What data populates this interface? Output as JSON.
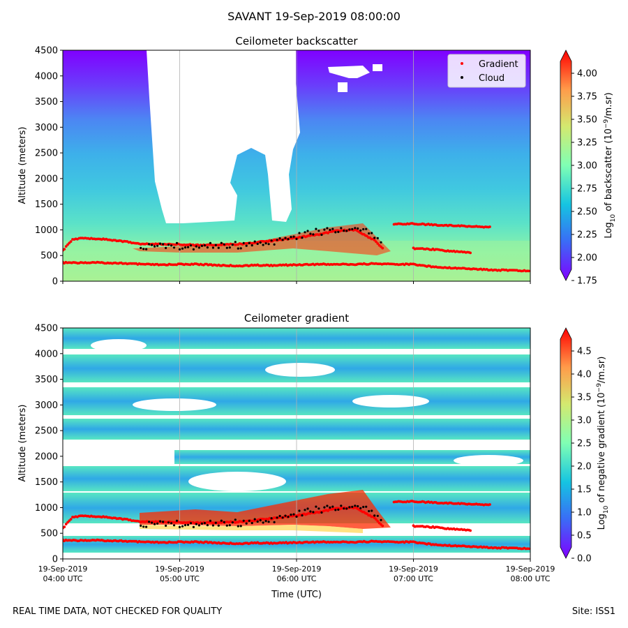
{
  "figure": {
    "suptitle": "SAVANT 19-Sep-2019 08:00:00",
    "footer_left": "REAL TIME DATA, NOT CHECKED FOR QUALITY",
    "footer_right": "Site: ISS1"
  },
  "chart_data": [
    {
      "type": "heatmap",
      "title": "Ceilometer backscatter",
      "xlabel": "",
      "ylabel": "Altitude (meters)",
      "xlim": [
        "2019-09-19T04:00",
        "2019-09-19T08:00"
      ],
      "ylim": [
        0,
        4500
      ],
      "yticks": [
        0,
        500,
        1000,
        1500,
        2000,
        2500,
        3000,
        3500,
        4000,
        4500
      ],
      "xticks": [
        "04:00",
        "05:00",
        "06:00",
        "07:00",
        "08:00"
      ],
      "xtick_labels": [],
      "grid": "vertical",
      "colorbar": {
        "label_parts": [
          "Log",
          "10",
          " of backscatter (10",
          "−9",
          "/m.sr)"
        ],
        "colormap": "rainbow",
        "min": 1.75,
        "max": 4.25,
        "ticks": [
          1.75,
          2.0,
          2.25,
          2.5,
          2.75,
          3.0,
          3.25,
          3.5,
          3.75,
          4.0
        ],
        "tick_labels": [
          "1.75",
          "2.00",
          "2.25",
          "2.50",
          "2.75",
          "3.00",
          "3.25",
          "3.50",
          "3.75",
          "4.00"
        ],
        "extend": "both"
      },
      "legend": {
        "placement": "top-right",
        "entries": [
          {
            "name": "Gradient",
            "color": "#ff0000"
          },
          {
            "name": "Cloud",
            "color": "#000000"
          }
        ]
      },
      "series": [
        {
          "name": "Gradient",
          "kind": "scatter",
          "color": "#ff0000",
          "x": [
            "04:00",
            "04:10",
            "04:20",
            "04:30",
            "04:40",
            "04:50",
            "05:00",
            "05:10",
            "05:20",
            "05:30",
            "05:40",
            "05:50",
            "06:00",
            "06:10",
            "06:20",
            "06:30",
            "06:40",
            "06:50",
            "07:00",
            "07:10",
            "07:20",
            "07:30",
            "07:40",
            "07:50",
            "08:00"
          ],
          "y": [
            360,
            360,
            360,
            350,
            330,
            320,
            330,
            330,
            310,
            300,
            310,
            310,
            320,
            330,
            330,
            330,
            340,
            330,
            330,
            280,
            260,
            240,
            220,
            210,
            200
          ]
        },
        {
          "name": "Gradient",
          "kind": "scatter",
          "color": "#ff0000",
          "x": [
            "04:00",
            "04:05",
            "04:10",
            "04:20",
            "04:30",
            "04:40",
            "04:50",
            "05:00",
            "05:10",
            "05:20",
            "05:30",
            "05:40",
            "05:50",
            "06:00",
            "06:10",
            "06:20",
            "06:30",
            "06:40",
            "06:45"
          ],
          "y": [
            600,
            810,
            840,
            820,
            780,
            730,
            720,
            720,
            700,
            710,
            720,
            760,
            800,
            850,
            900,
            980,
            1000,
            800,
            600
          ]
        },
        {
          "name": "Gradient",
          "kind": "scatter",
          "color": "#ff0000",
          "x": [
            "06:50",
            "07:00",
            "07:10",
            "07:20",
            "07:30",
            "07:40"
          ],
          "y": [
            1110,
            1120,
            1100,
            1080,
            1070,
            1050
          ]
        },
        {
          "name": "Gradient",
          "kind": "scatter",
          "color": "#ff0000",
          "x": [
            "07:00",
            "07:10",
            "07:20",
            "07:30"
          ],
          "y": [
            640,
            620,
            580,
            560
          ]
        },
        {
          "name": "Cloud",
          "kind": "scatter",
          "color": "#000000",
          "x": [
            "04:40",
            "04:50",
            "05:00",
            "05:10",
            "05:20",
            "05:30",
            "05:40",
            "05:50",
            "06:00",
            "06:10",
            "06:20",
            "06:30",
            "06:40",
            "06:45"
          ],
          "y": [
            660,
            670,
            680,
            670,
            680,
            700,
            740,
            790,
            870,
            950,
            1010,
            1050,
            900,
            640
          ]
        }
      ]
    },
    {
      "type": "heatmap",
      "title": "Ceilometer gradient",
      "xlabel": "Time (UTC)",
      "ylabel": "Altitude (meters)",
      "xlim": [
        "2019-09-19T04:00",
        "2019-09-19T08:00"
      ],
      "ylim": [
        0,
        4500
      ],
      "yticks": [
        0,
        500,
        1000,
        1500,
        2000,
        2500,
        3000,
        3500,
        4000,
        4500
      ],
      "xticks": [
        "04:00",
        "05:00",
        "06:00",
        "07:00",
        "08:00"
      ],
      "xtick_labels": [
        [
          "19-Sep-2019",
          "04:00 UTC"
        ],
        [
          "19-Sep-2019",
          "05:00 UTC"
        ],
        [
          "19-Sep-2019",
          "06:00 UTC"
        ],
        [
          "19-Sep-2019",
          "07:00 UTC"
        ],
        [
          "19-Sep-2019",
          "08:00 UTC"
        ]
      ],
      "grid": "vertical",
      "colorbar": {
        "label_parts": [
          "Log",
          "10",
          " of negative gradient (10",
          "−9",
          "/m.sr)"
        ],
        "colormap": "rainbow",
        "min": 0.0,
        "max": 5.0,
        "ticks": [
          0.0,
          0.5,
          1.0,
          1.5,
          2.0,
          2.5,
          3.0,
          3.5,
          4.0,
          4.5
        ],
        "tick_labels": [
          "0.0",
          "0.5",
          "1.0",
          "1.5",
          "2.0",
          "2.5",
          "3.0",
          "3.5",
          "4.0",
          "4.5"
        ],
        "extend": "both"
      },
      "series": [
        {
          "name": "Gradient",
          "kind": "scatter",
          "color": "#ff0000",
          "x": [
            "04:00",
            "04:10",
            "04:20",
            "04:30",
            "04:40",
            "04:50",
            "05:00",
            "05:10",
            "05:20",
            "05:30",
            "05:40",
            "05:50",
            "06:00",
            "06:10",
            "06:20",
            "06:30",
            "06:40",
            "06:50",
            "07:00",
            "07:10",
            "07:20",
            "07:30",
            "07:40",
            "07:50",
            "08:00"
          ],
          "y": [
            360,
            360,
            360,
            350,
            330,
            320,
            330,
            330,
            310,
            300,
            310,
            310,
            320,
            330,
            330,
            330,
            340,
            330,
            330,
            280,
            260,
            240,
            220,
            210,
            200
          ]
        },
        {
          "name": "Gradient",
          "kind": "scatter",
          "color": "#ff0000",
          "x": [
            "04:00",
            "04:05",
            "04:10",
            "04:20",
            "04:30",
            "04:40",
            "04:50",
            "05:00",
            "05:10",
            "05:20",
            "05:30",
            "05:40",
            "05:50",
            "06:00",
            "06:10",
            "06:20",
            "06:30",
            "06:40",
            "06:45"
          ],
          "y": [
            600,
            810,
            840,
            820,
            780,
            730,
            720,
            720,
            700,
            710,
            720,
            760,
            800,
            850,
            900,
            980,
            1000,
            800,
            600
          ]
        },
        {
          "name": "Gradient",
          "kind": "scatter",
          "color": "#ff0000",
          "x": [
            "06:50",
            "07:00",
            "07:10",
            "07:20",
            "07:30",
            "07:40"
          ],
          "y": [
            1110,
            1120,
            1100,
            1080,
            1070,
            1050
          ]
        },
        {
          "name": "Gradient",
          "kind": "scatter",
          "color": "#ff0000",
          "x": [
            "07:00",
            "07:10",
            "07:20",
            "07:30"
          ],
          "y": [
            640,
            620,
            580,
            560
          ]
        },
        {
          "name": "Cloud",
          "kind": "scatter",
          "color": "#000000",
          "x": [
            "04:40",
            "04:50",
            "05:00",
            "05:10",
            "05:20",
            "05:30",
            "05:40",
            "05:50",
            "06:00",
            "06:10",
            "06:20",
            "06:30",
            "06:40",
            "06:45"
          ],
          "y": [
            660,
            670,
            680,
            670,
            680,
            700,
            740,
            790,
            870,
            950,
            1010,
            1050,
            900,
            640
          ]
        }
      ]
    }
  ]
}
